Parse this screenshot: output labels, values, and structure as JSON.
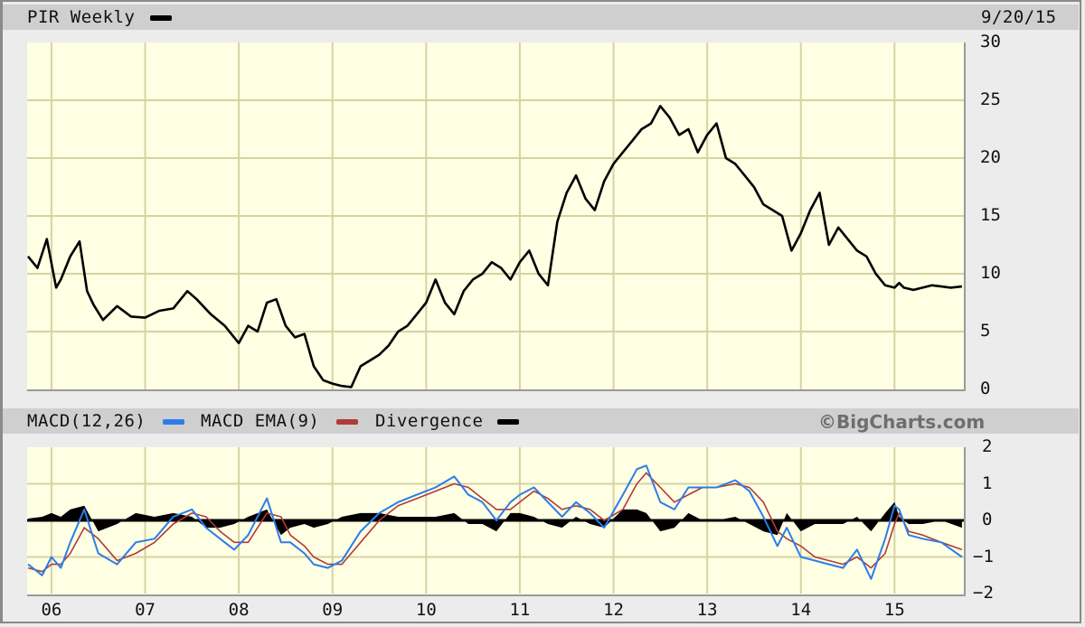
{
  "header": {
    "title": "PIR Weekly",
    "date": "9/20/15"
  },
  "indicator_header": {
    "macd_label": "MACD(12,26)",
    "ema_label": "MACD EMA(9)",
    "divergence_label": "Divergence",
    "brand": "©BigCharts.com"
  },
  "colors": {
    "plot_bg": "#ffffe3",
    "grid": "#d6d3a3",
    "price_line": "#000000",
    "macd_line": "#2b7de9",
    "ema_line": "#b03a3a",
    "divergence": "#000000",
    "header_bar": "#cfcfcf",
    "background": "#ececec"
  },
  "chart_data": [
    {
      "type": "line",
      "title": "PIR Weekly",
      "subtitle": "9/20/15",
      "xlabel": "",
      "ylabel": "",
      "ylim": [
        0,
        30
      ],
      "yticks": [
        "30",
        "25",
        "20",
        "15",
        "10",
        "5",
        "0"
      ],
      "xticks": [
        "06",
        "07",
        "08",
        "09",
        "10",
        "11",
        "12",
        "13",
        "14",
        "15"
      ],
      "grid": true,
      "series": [
        {
          "name": "PIR",
          "x": [
            2005.75,
            2005.85,
            2005.95,
            2006.05,
            2006.1,
            2006.2,
            2006.3,
            2006.38,
            2006.45,
            2006.55,
            2006.7,
            2006.85,
            2007.0,
            2007.15,
            2007.3,
            2007.45,
            2007.55,
            2007.7,
            2007.85,
            2008.0,
            2008.1,
            2008.2,
            2008.3,
            2008.4,
            2008.5,
            2008.6,
            2008.7,
            2008.8,
            2008.9,
            2009.0,
            2009.1,
            2009.2,
            2009.3,
            2009.4,
            2009.5,
            2009.6,
            2009.7,
            2009.8,
            2009.9,
            2010.0,
            2010.1,
            2010.2,
            2010.3,
            2010.4,
            2010.5,
            2010.6,
            2010.7,
            2010.8,
            2010.9,
            2011.0,
            2011.1,
            2011.2,
            2011.3,
            2011.4,
            2011.5,
            2011.6,
            2011.7,
            2011.8,
            2011.9,
            2012.0,
            2012.1,
            2012.2,
            2012.3,
            2012.4,
            2012.5,
            2012.6,
            2012.7,
            2012.8,
            2012.9,
            2013.0,
            2013.1,
            2013.2,
            2013.3,
            2013.4,
            2013.5,
            2013.6,
            2013.7,
            2013.8,
            2013.9,
            2014.0,
            2014.1,
            2014.2,
            2014.3,
            2014.4,
            2014.5,
            2014.6,
            2014.7,
            2014.8,
            2014.9,
            2015.0,
            2015.05,
            2015.1,
            2015.2,
            2015.3,
            2015.4,
            2015.5,
            2015.6,
            2015.72
          ],
          "values": [
            11.5,
            10.5,
            13.0,
            8.8,
            9.5,
            11.5,
            12.8,
            8.5,
            7.3,
            6.0,
            7.2,
            6.3,
            6.2,
            6.8,
            7.0,
            8.5,
            7.8,
            6.5,
            5.5,
            4.0,
            5.5,
            5.0,
            7.5,
            7.8,
            5.5,
            4.5,
            4.8,
            2.0,
            0.8,
            0.5,
            0.3,
            0.2,
            2.0,
            2.5,
            3.0,
            3.8,
            5.0,
            5.5,
            6.5,
            7.5,
            9.5,
            7.5,
            6.5,
            8.5,
            9.5,
            10.0,
            11.0,
            10.5,
            9.5,
            11.0,
            12.0,
            10.0,
            9.0,
            14.5,
            17.0,
            18.5,
            16.5,
            15.5,
            18.0,
            19.5,
            20.5,
            21.5,
            22.5,
            23.0,
            24.5,
            23.5,
            22.0,
            22.5,
            20.5,
            22.0,
            23.0,
            20.0,
            19.5,
            18.5,
            17.5,
            16.0,
            15.5,
            15.0,
            12.0,
            13.5,
            15.5,
            17.0,
            12.5,
            14.0,
            13.0,
            12.0,
            11.5,
            10.0,
            9.0,
            8.8,
            9.2,
            8.8,
            8.6,
            8.8,
            9.0,
            8.9,
            8.8,
            8.9
          ]
        }
      ]
    },
    {
      "type": "line",
      "title": "MACD(12,26)  MACD EMA(9)  Divergence",
      "ylim": [
        -2,
        2
      ],
      "yticks": [
        "2",
        "1",
        "0",
        "-1",
        "-2"
      ],
      "xticks": [
        "06",
        "07",
        "08",
        "09",
        "10",
        "11",
        "12",
        "13",
        "14",
        "15"
      ],
      "grid": true,
      "series": [
        {
          "name": "MACD(12,26)",
          "x": [
            2005.75,
            2005.9,
            2006.0,
            2006.1,
            2006.2,
            2006.35,
            2006.5,
            2006.7,
            2006.9,
            2007.1,
            2007.3,
            2007.5,
            2007.65,
            2007.8,
            2007.95,
            2008.1,
            2008.3,
            2008.45,
            2008.55,
            2008.7,
            2008.8,
            2008.95,
            2009.1,
            2009.3,
            2009.5,
            2009.7,
            2009.9,
            2010.1,
            2010.3,
            2010.45,
            2010.6,
            2010.75,
            2010.9,
            2011.0,
            2011.15,
            2011.3,
            2011.45,
            2011.6,
            2011.75,
            2011.9,
            2012.1,
            2012.25,
            2012.35,
            2012.5,
            2012.65,
            2012.8,
            2012.95,
            2013.1,
            2013.3,
            2013.45,
            2013.6,
            2013.75,
            2013.85,
            2014.0,
            2014.15,
            2014.3,
            2014.45,
            2014.6,
            2014.75,
            2014.9,
            2015.0,
            2015.05,
            2015.15,
            2015.3,
            2015.5,
            2015.72
          ],
          "values": [
            -1.2,
            -1.5,
            -1.0,
            -1.3,
            -0.6,
            0.3,
            -0.9,
            -1.2,
            -0.6,
            -0.5,
            0.1,
            0.3,
            -0.2,
            -0.5,
            -0.8,
            -0.4,
            0.6,
            -0.6,
            -0.6,
            -0.9,
            -1.2,
            -1.3,
            -1.1,
            -0.3,
            0.2,
            0.5,
            0.7,
            0.9,
            1.2,
            0.7,
            0.5,
            0.0,
            0.5,
            0.7,
            0.9,
            0.5,
            0.1,
            0.5,
            0.2,
            -0.2,
            0.7,
            1.4,
            1.5,
            0.5,
            0.3,
            0.9,
            0.9,
            0.9,
            1.1,
            0.8,
            0.1,
            -0.7,
            -0.2,
            -1.0,
            -1.1,
            -1.2,
            -1.3,
            -0.8,
            -1.6,
            -0.5,
            0.4,
            0.3,
            -0.4,
            -0.5,
            -0.6,
            -1.0
          ]
        },
        {
          "name": "MACD EMA(9)",
          "x": [
            2005.75,
            2005.9,
            2006.0,
            2006.1,
            2006.2,
            2006.35,
            2006.5,
            2006.7,
            2006.9,
            2007.1,
            2007.3,
            2007.5,
            2007.65,
            2007.8,
            2007.95,
            2008.1,
            2008.3,
            2008.45,
            2008.55,
            2008.7,
            2008.8,
            2008.95,
            2009.1,
            2009.3,
            2009.5,
            2009.7,
            2009.9,
            2010.1,
            2010.3,
            2010.45,
            2010.6,
            2010.75,
            2010.9,
            2011.0,
            2011.15,
            2011.3,
            2011.45,
            2011.6,
            2011.75,
            2011.9,
            2012.1,
            2012.25,
            2012.35,
            2012.5,
            2012.65,
            2012.8,
            2012.95,
            2013.1,
            2013.3,
            2013.45,
            2013.6,
            2013.75,
            2013.85,
            2014.0,
            2014.15,
            2014.3,
            2014.45,
            2014.6,
            2014.75,
            2014.9,
            2015.0,
            2015.05,
            2015.15,
            2015.3,
            2015.5,
            2015.72
          ],
          "values": [
            -1.3,
            -1.4,
            -1.2,
            -1.2,
            -0.9,
            -0.2,
            -0.5,
            -1.1,
            -0.9,
            -0.6,
            -0.1,
            0.2,
            0.1,
            -0.3,
            -0.6,
            -0.6,
            0.2,
            0.1,
            -0.4,
            -0.7,
            -1.0,
            -1.2,
            -1.2,
            -0.6,
            0.0,
            0.4,
            0.6,
            0.8,
            1.0,
            0.9,
            0.6,
            0.3,
            0.3,
            0.5,
            0.8,
            0.6,
            0.3,
            0.4,
            0.3,
            0.0,
            0.3,
            1.0,
            1.3,
            0.9,
            0.5,
            0.7,
            0.9,
            0.9,
            1.0,
            0.9,
            0.5,
            -0.3,
            -0.5,
            -0.7,
            -1.0,
            -1.1,
            -1.2,
            -1.0,
            -1.3,
            -0.9,
            -0.1,
            0.2,
            -0.3,
            -0.4,
            -0.6,
            -0.8
          ]
        },
        {
          "name": "Divergence",
          "type": "area",
          "x": [
            2005.75,
            2005.9,
            2006.0,
            2006.1,
            2006.2,
            2006.35,
            2006.5,
            2006.7,
            2006.9,
            2007.1,
            2007.3,
            2007.5,
            2007.65,
            2007.8,
            2007.95,
            2008.1,
            2008.3,
            2008.45,
            2008.55,
            2008.7,
            2008.8,
            2008.95,
            2009.1,
            2009.3,
            2009.5,
            2009.7,
            2009.9,
            2010.1,
            2010.3,
            2010.45,
            2010.6,
            2010.75,
            2010.9,
            2011.0,
            2011.15,
            2011.3,
            2011.45,
            2011.6,
            2011.75,
            2011.9,
            2012.1,
            2012.25,
            2012.35,
            2012.5,
            2012.65,
            2012.8,
            2012.95,
            2013.1,
            2013.3,
            2013.45,
            2013.6,
            2013.75,
            2013.85,
            2014.0,
            2014.15,
            2014.3,
            2014.45,
            2014.6,
            2014.75,
            2014.9,
            2015.0,
            2015.05,
            2015.15,
            2015.3,
            2015.5,
            2015.72
          ],
          "values": [
            0.05,
            0.1,
            0.2,
            0.1,
            0.3,
            0.4,
            -0.3,
            -0.1,
            0.2,
            0.1,
            0.2,
            0.1,
            -0.2,
            -0.2,
            -0.1,
            0.1,
            0.3,
            -0.4,
            -0.2,
            -0.1,
            -0.2,
            -0.1,
            0.1,
            0.2,
            0.2,
            0.1,
            0.1,
            0.1,
            0.2,
            -0.1,
            -0.1,
            -0.3,
            0.2,
            0.2,
            0.1,
            -0.1,
            -0.2,
            0.1,
            -0.1,
            -0.2,
            0.3,
            0.3,
            0.2,
            -0.3,
            -0.2,
            0.2,
            0.0,
            0.0,
            0.1,
            -0.1,
            -0.3,
            -0.4,
            0.2,
            -0.3,
            -0.1,
            -0.1,
            -0.1,
            0.1,
            -0.3,
            0.2,
            0.5,
            0.1,
            -0.1,
            -0.1,
            0.0,
            -0.2
          ]
        }
      ]
    }
  ]
}
